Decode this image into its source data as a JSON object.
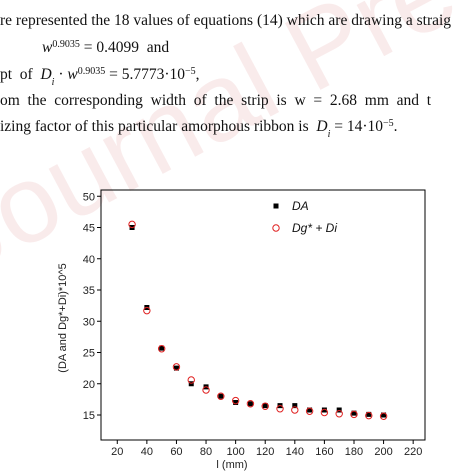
{
  "document": {
    "watermark": "Journal Pre-proof",
    "lines": [
      {
        "runs": [
          {
            "text": "re represented the 18 values of equations (14) which are drawing a straig"
          }
        ]
      },
      {
        "runs": [
          {
            "text": "w",
            "style": "i"
          },
          {
            "text": "0.9035",
            "style": "sup"
          },
          {
            "text": " = 0.4099  and"
          }
        ]
      },
      {
        "runs": [
          {
            "text": "pt  of  "
          },
          {
            "text": "D",
            "style": "i"
          },
          {
            "text": "i",
            "style": "sub"
          },
          {
            "text": " · "
          },
          {
            "text": "w",
            "style": "i"
          },
          {
            "text": "0.9035",
            "style": "sup"
          },
          {
            "text": " = 5.7773·10"
          },
          {
            "text": "−5",
            "style": "sup"
          },
          {
            "text": ","
          }
        ]
      },
      {
        "runs": [
          {
            "text": "om  the  corresponding  width  of  the  strip  is  w  =  2.68  mm  and  t"
          }
        ]
      },
      {
        "runs": [
          {
            "text": "izing factor of this particular amorphous ribbon is  "
          },
          {
            "text": "D",
            "style": "i"
          },
          {
            "text": "i",
            "style": "sub"
          },
          {
            "text": " = 14·10"
          },
          {
            "text": "−5",
            "style": "sup"
          },
          {
            "text": "."
          }
        ]
      }
    ]
  },
  "chart_data": {
    "type": "scatter",
    "x_label": "l (mm)",
    "y_label": "(DA and Dg*+Di)*10^5",
    "x": [
      30,
      40,
      50,
      60,
      70,
      80,
      90,
      100,
      110,
      120,
      130,
      140,
      150,
      160,
      170,
      180,
      190,
      200
    ],
    "series": [
      {
        "name": "DA",
        "color": "#000000",
        "marker": "square",
        "values": [
          45.0,
          32.2,
          25.7,
          22.5,
          20.0,
          19.5,
          18.0,
          17.0,
          16.8,
          16.5,
          16.5,
          16.5,
          15.8,
          15.8,
          15.8,
          15.3,
          15.1,
          15.0
        ]
      },
      {
        "name": "Dg* + Di",
        "color": "#e02020",
        "marker": "circle",
        "values": [
          45.5,
          31.7,
          25.6,
          22.7,
          20.6,
          19.0,
          18.0,
          17.3,
          16.8,
          16.4,
          16.0,
          15.8,
          15.6,
          15.4,
          15.2,
          15.1,
          14.9,
          14.8
        ]
      }
    ],
    "xlim": [
      9,
      228
    ],
    "xticks": [
      20,
      40,
      60,
      80,
      100,
      120,
      140,
      160,
      180,
      200,
      220
    ],
    "ylim": [
      11,
      51
    ],
    "yticks": [
      15,
      20,
      25,
      30,
      35,
      40,
      45,
      50
    ],
    "grid": false
  }
}
